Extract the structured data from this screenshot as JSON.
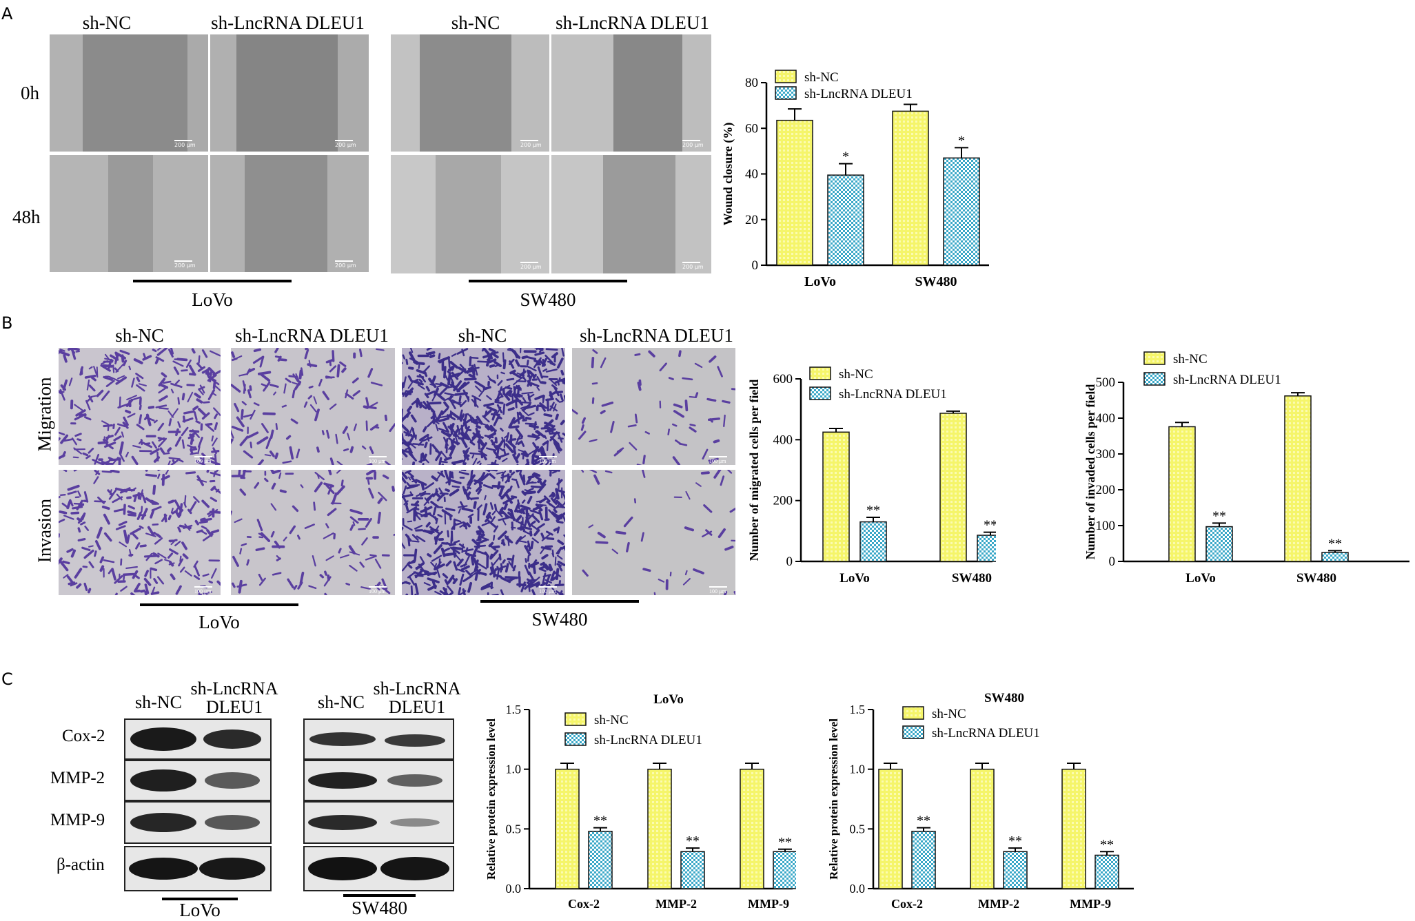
{
  "panels": {
    "a": {
      "letter": "A",
      "lovo_headers": [
        "sh-NC",
        "sh-LncRNA DLEU1"
      ],
      "sw480_headers": [
        "sh-NC",
        "sh-LncRNA DLEU1"
      ],
      "rows": [
        "0h",
        "48h"
      ],
      "scale_text": "200 μm",
      "lovo_label": "LoVo",
      "sw480_label": "SW480"
    },
    "b": {
      "letter": "B",
      "headers": [
        "sh-NC",
        "sh-LncRNA DLEU1",
        "sh-NC",
        "sh-LncRNA DLEU1"
      ],
      "rows": [
        "Migration",
        "Invasion"
      ],
      "scale_text": "100 μm",
      "lovo_label": "LoVo",
      "sw480_label": "SW480"
    },
    "c": {
      "letter": "C",
      "lovo_headers": [
        "sh-NC",
        "sh-LncRNA",
        "DLEU1"
      ],
      "sw480_headers": [
        "sh-NC",
        "sh-LncRNA",
        "DLEU1"
      ],
      "proteins": [
        "Cox-2",
        "MMP-2",
        "MMP-9",
        "β-actin"
      ],
      "lovo_label": "LoVo",
      "sw480_label": "SW480"
    }
  },
  "colors": {
    "sh_nc": "#f5f56a",
    "sh_dleu1": "#3aa8c8",
    "crystal_violet": "#5a3fa0"
  },
  "chart_data": [
    {
      "id": "wound",
      "type": "bar",
      "title": "",
      "ylabel": "Wound closure (%)",
      "xlabel": "",
      "categories": [
        "LoVo",
        "SW480"
      ],
      "ylim": [
        0,
        80
      ],
      "yticks": [
        0,
        20,
        40,
        60,
        80
      ],
      "series": [
        {
          "name": "sh-NC",
          "values": [
            63.5,
            67.5
          ],
          "errors": [
            5,
            3
          ]
        },
        {
          "name": "sh-LncRNA DLEU1",
          "values": [
            39.5,
            47
          ],
          "errors": [
            5,
            4.5
          ]
        }
      ],
      "annotations": [
        "*",
        "*"
      ],
      "legend": "top-left"
    },
    {
      "id": "migrated",
      "type": "bar",
      "title": "",
      "ylabel": "Number of migrated cells per field",
      "xlabel": "",
      "categories": [
        "LoVo",
        "SW480"
      ],
      "ylim": [
        0,
        600
      ],
      "yticks": [
        0,
        200,
        400,
        600
      ],
      "series": [
        {
          "name": "sh-NC",
          "values": [
            425,
            487
          ],
          "errors": [
            12,
            7
          ]
        },
        {
          "name": "sh-LncRNA DLEU1",
          "values": [
            130,
            86
          ],
          "errors": [
            15,
            10
          ]
        }
      ],
      "annotations": [
        "**",
        "**"
      ],
      "legend": "top-left"
    },
    {
      "id": "invaded",
      "type": "bar",
      "title": "",
      "ylabel": "Number of invaded cells per field",
      "xlabel": "",
      "categories": [
        "LoVo",
        "SW480"
      ],
      "ylim": [
        0,
        500
      ],
      "yticks": [
        0,
        100,
        200,
        300,
        400,
        500
      ],
      "series": [
        {
          "name": "sh-NC",
          "values": [
            376,
            462
          ],
          "errors": [
            12,
            9
          ]
        },
        {
          "name": "sh-LncRNA DLEU1",
          "values": [
            97,
            25
          ],
          "errors": [
            10,
            5
          ]
        }
      ],
      "annotations": [
        "**",
        "**"
      ],
      "legend": "top-left"
    },
    {
      "id": "protein_lovo",
      "type": "bar",
      "title": "LoVo",
      "ylabel": "Relative protein expression level",
      "xlabel": "",
      "categories": [
        "Cox-2",
        "MMP-2",
        "MMP-9"
      ],
      "ylim": [
        0,
        1.5
      ],
      "yticks": [
        0.0,
        0.5,
        1.0,
        1.5
      ],
      "ytick_labels": [
        "0.0",
        "0.5",
        "1.0",
        "1.5"
      ],
      "series": [
        {
          "name": "sh-NC",
          "values": [
            1.0,
            1.0,
            1.0
          ],
          "errors": [
            0.05,
            0.05,
            0.05
          ]
        },
        {
          "name": "sh-LncRNA DLEU1",
          "values": [
            0.48,
            0.31,
            0.31
          ],
          "errors": [
            0.03,
            0.03,
            0.02
          ]
        }
      ],
      "annotations": [
        "**",
        "**",
        "**"
      ],
      "legend": "top-left"
    },
    {
      "id": "protein_sw480",
      "type": "bar",
      "title": "SW480",
      "ylabel": "Relative protein expression level",
      "xlabel": "",
      "categories": [
        "Cox-2",
        "MMP-2",
        "MMP-9"
      ],
      "ylim": [
        0,
        1.5
      ],
      "yticks": [
        0.0,
        0.5,
        1.0,
        1.5
      ],
      "ytick_labels": [
        "0.0",
        "0.5",
        "1.0",
        "1.5"
      ],
      "series": [
        {
          "name": "sh-NC",
          "values": [
            1.0,
            1.0,
            1.0
          ],
          "errors": [
            0.05,
            0.05,
            0.05
          ]
        },
        {
          "name": "sh-LncRNA DLEU1",
          "values": [
            0.48,
            0.31,
            0.28
          ],
          "errors": [
            0.03,
            0.03,
            0.03
          ]
        }
      ],
      "annotations": [
        "**",
        "**",
        "**"
      ],
      "legend": "top-left"
    }
  ]
}
